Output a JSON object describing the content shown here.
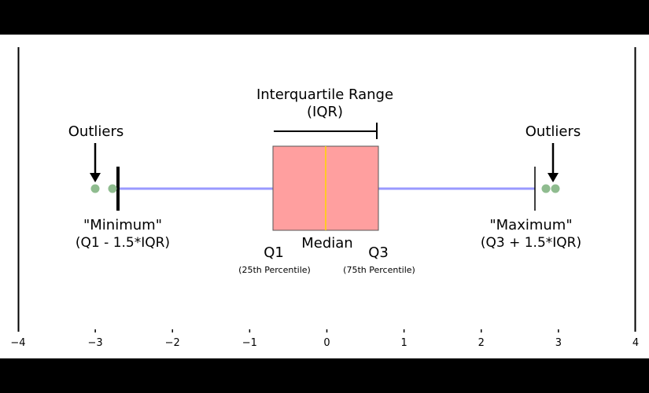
{
  "diagram": {
    "title_line1": "Interquartile Range",
    "title_line2": "(IQR)",
    "outliers_left_label": "Outliers",
    "outliers_right_label": "Outliers",
    "minimum_label": "\"Minimum\"",
    "minimum_formula": "(Q1 - 1.5*IQR)",
    "maximum_label": "\"Maximum\"",
    "maximum_formula": "(Q3 + 1.5*IQR)",
    "q1_label": "Q1",
    "q1_sub": "(25th Percentile)",
    "median_label": "Median",
    "q3_label": "Q3",
    "q3_sub": "(75th Percentile)"
  },
  "axis": {
    "ticks": [
      "−4",
      "−3",
      "−2",
      "−1",
      "0",
      "1",
      "2",
      "3",
      "4"
    ]
  },
  "colors": {
    "box_fill": "#ff9f9f",
    "median_line": "#ffd700",
    "whisker": "#9a9aff",
    "outlier": "#8fbc8f",
    "band": "#000000",
    "background": "#ffffff"
  }
}
